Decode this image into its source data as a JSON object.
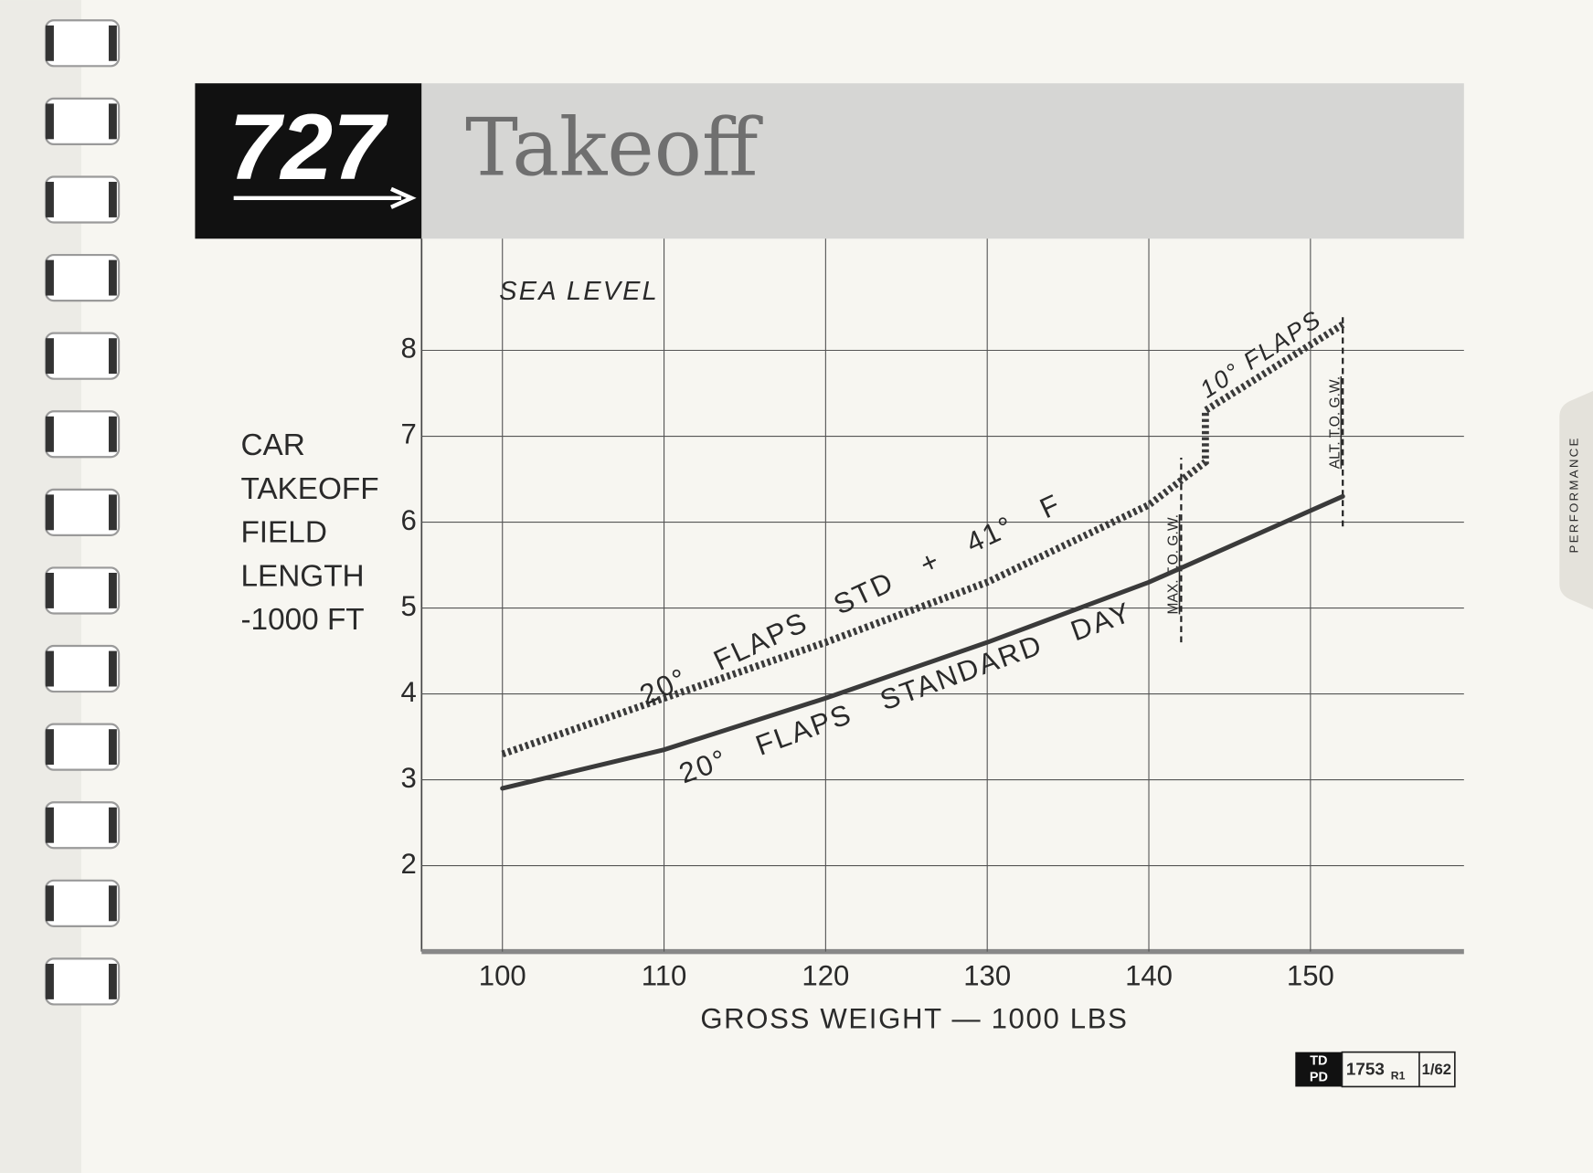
{
  "header": {
    "logo": "727",
    "title": "Takeoff"
  },
  "side_tab": "PERFORMANCE",
  "footer": {
    "badge_top": "TD",
    "badge_bottom": "PD",
    "number": "1753",
    "revision": "R1",
    "date": "1/62"
  },
  "chart_data": {
    "type": "line",
    "x_label": "GROSS WEIGHT — 1000 LBS",
    "y_label": [
      "CAR",
      "TAKEOFF",
      "FIELD",
      "LENGTH",
      "-1000 FT"
    ],
    "annotations": [
      "SEA LEVEL",
      "10° FLAPS"
    ],
    "xlim": [
      95,
      159.5
    ],
    "ylim": [
      1,
      9.3
    ],
    "xticks": [
      100,
      110,
      120,
      130,
      140,
      150
    ],
    "yticks": [
      2,
      3,
      4,
      5,
      6,
      7,
      8
    ],
    "grid": true,
    "series": [
      {
        "name": "20° FLAPS STANDARD DAY",
        "color": "#3a3a3a",
        "style": "solid",
        "x": [
          100,
          110,
          120,
          130,
          140,
          152
        ],
        "values": [
          2.9,
          3.35,
          3.95,
          4.6,
          5.3,
          6.3
        ]
      },
      {
        "name": "20° FLAPS STD + 41° F",
        "color": "#3a3a3a",
        "style": "dotted",
        "x": [
          100,
          110,
          120,
          130,
          140,
          143.5,
          143.5,
          152
        ],
        "values": [
          3.3,
          3.95,
          4.6,
          5.3,
          6.2,
          6.7,
          7.3,
          8.3
        ]
      }
    ],
    "reference_lines": [
      {
        "label": "MAX. T.O. G.W.",
        "x": 142,
        "y": [
          4.6,
          6.75
        ]
      },
      {
        "label": "ALT. T.O. G.W.",
        "x": 152,
        "y": [
          5.95,
          8.4
        ]
      }
    ]
  }
}
